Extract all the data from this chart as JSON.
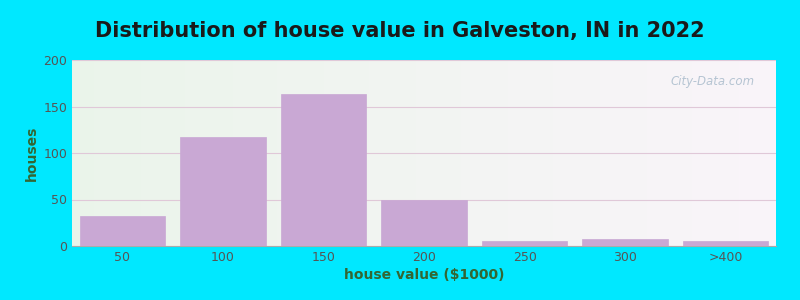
{
  "title": "Distribution of house value in Galveston, IN in 2022",
  "xlabel": "house value ($1000)",
  "ylabel": "houses",
  "bar_labels": [
    "50",
    "100",
    "150",
    "200",
    "250",
    "300",
    ">400"
  ],
  "bar_heights": [
    32,
    117,
    163,
    50,
    5,
    8,
    5
  ],
  "bar_color": "#c9a8d4",
  "bar_edgecolor": "#c9a8d4",
  "ylim": [
    0,
    200
  ],
  "yticks": [
    0,
    50,
    100,
    150,
    200
  ],
  "bg_outer": "#00e8ff",
  "title_fontsize": 15,
  "axis_label_fontsize": 10,
  "tick_fontsize": 9,
  "watermark_text": "City-Data.com",
  "bar_width": 0.85
}
